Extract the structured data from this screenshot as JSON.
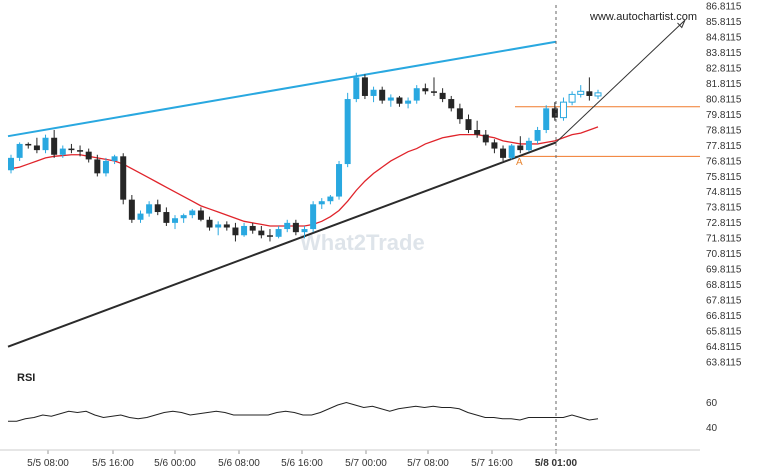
{
  "chart_data": {
    "type": "candlestick",
    "source_label": "www.autochartist.com",
    "watermark": "What2Trade",
    "indicator_label": "RSI",
    "pattern_point_label": "A",
    "y_ticks": [
      "86.8115",
      "85.8115",
      "84.8115",
      "83.8115",
      "82.8115",
      "81.8115",
      "80.8115",
      "79.8115",
      "78.8115",
      "77.8115",
      "76.8115",
      "75.8115",
      "74.8115",
      "73.8115",
      "72.8115",
      "71.8115",
      "70.8115",
      "69.8115",
      "68.8115",
      "67.8115",
      "66.8115",
      "65.8115",
      "64.8115",
      "63.8115"
    ],
    "rsi_ticks": [
      "60",
      "40"
    ],
    "x_ticks": [
      "5/5 08:00",
      "5/5 16:00",
      "5/6 00:00",
      "5/6 08:00",
      "5/6 16:00",
      "5/7 00:00",
      "5/7 08:00",
      "5/7 16:00",
      "5/8 01:00"
    ],
    "x_tick_bold_index": 8,
    "candles": [
      {
        "o": 76.2,
        "h": 77.2,
        "l": 76.0,
        "c": 77.0
      },
      {
        "o": 77.0,
        "h": 78.0,
        "l": 76.8,
        "c": 77.9
      },
      {
        "o": 77.9,
        "h": 78.0,
        "l": 77.6,
        "c": 77.8
      },
      {
        "o": 77.8,
        "h": 78.3,
        "l": 77.3,
        "c": 77.5
      },
      {
        "o": 77.5,
        "h": 78.5,
        "l": 77.3,
        "c": 78.3
      },
      {
        "o": 78.3,
        "h": 78.8,
        "l": 77.0,
        "c": 77.2
      },
      {
        "o": 77.2,
        "h": 77.8,
        "l": 77.0,
        "c": 77.6
      },
      {
        "o": 77.6,
        "h": 77.9,
        "l": 77.3,
        "c": 77.5
      },
      {
        "o": 77.5,
        "h": 77.8,
        "l": 77.1,
        "c": 77.4
      },
      {
        "o": 77.4,
        "h": 77.6,
        "l": 76.7,
        "c": 76.9
      },
      {
        "o": 76.9,
        "h": 77.2,
        "l": 75.8,
        "c": 76.0
      },
      {
        "o": 76.0,
        "h": 77.0,
        "l": 75.8,
        "c": 76.8
      },
      {
        "o": 76.8,
        "h": 77.2,
        "l": 76.6,
        "c": 77.1
      },
      {
        "o": 77.1,
        "h": 77.3,
        "l": 74.0,
        "c": 74.3
      },
      {
        "o": 74.3,
        "h": 74.6,
        "l": 72.8,
        "c": 73.0
      },
      {
        "o": 73.0,
        "h": 73.6,
        "l": 72.8,
        "c": 73.4
      },
      {
        "o": 73.4,
        "h": 74.2,
        "l": 73.2,
        "c": 74.0
      },
      {
        "o": 74.0,
        "h": 74.3,
        "l": 73.3,
        "c": 73.5
      },
      {
        "o": 73.5,
        "h": 73.8,
        "l": 72.6,
        "c": 72.8
      },
      {
        "o": 72.8,
        "h": 73.3,
        "l": 72.4,
        "c": 73.1
      },
      {
        "o": 73.1,
        "h": 73.4,
        "l": 72.8,
        "c": 73.3
      },
      {
        "o": 73.3,
        "h": 73.7,
        "l": 73.1,
        "c": 73.6
      },
      {
        "o": 73.6,
        "h": 73.8,
        "l": 72.9,
        "c": 73.0
      },
      {
        "o": 73.0,
        "h": 73.2,
        "l": 72.3,
        "c": 72.5
      },
      {
        "o": 72.5,
        "h": 72.9,
        "l": 72.0,
        "c": 72.7
      },
      {
        "o": 72.7,
        "h": 72.9,
        "l": 72.3,
        "c": 72.5
      },
      {
        "o": 72.5,
        "h": 72.8,
        "l": 71.6,
        "c": 72.0
      },
      {
        "o": 72.0,
        "h": 72.8,
        "l": 71.9,
        "c": 72.6
      },
      {
        "o": 72.6,
        "h": 72.8,
        "l": 72.1,
        "c": 72.3
      },
      {
        "o": 72.3,
        "h": 72.6,
        "l": 71.8,
        "c": 72.0
      },
      {
        "o": 72.0,
        "h": 72.4,
        "l": 71.6,
        "c": 71.9
      },
      {
        "o": 71.9,
        "h": 72.6,
        "l": 71.8,
        "c": 72.4
      },
      {
        "o": 72.4,
        "h": 73.0,
        "l": 72.2,
        "c": 72.8
      },
      {
        "o": 72.8,
        "h": 73.0,
        "l": 72.0,
        "c": 72.2
      },
      {
        "o": 72.2,
        "h": 72.6,
        "l": 71.8,
        "c": 72.4
      },
      {
        "o": 72.4,
        "h": 74.2,
        "l": 72.2,
        "c": 74.0
      },
      {
        "o": 74.0,
        "h": 74.4,
        "l": 73.7,
        "c": 74.2
      },
      {
        "o": 74.2,
        "h": 74.6,
        "l": 74.0,
        "c": 74.5
      },
      {
        "o": 74.5,
        "h": 76.8,
        "l": 74.3,
        "c": 76.6
      },
      {
        "o": 76.6,
        "h": 81.2,
        "l": 76.4,
        "c": 80.8
      },
      {
        "o": 80.8,
        "h": 82.5,
        "l": 80.6,
        "c": 82.2
      },
      {
        "o": 82.2,
        "h": 82.4,
        "l": 80.8,
        "c": 81.0
      },
      {
        "o": 81.0,
        "h": 81.6,
        "l": 80.6,
        "c": 81.4
      },
      {
        "o": 81.4,
        "h": 81.6,
        "l": 80.5,
        "c": 80.7
      },
      {
        "o": 80.7,
        "h": 81.1,
        "l": 80.3,
        "c": 80.9
      },
      {
        "o": 80.9,
        "h": 81.0,
        "l": 80.3,
        "c": 80.5
      },
      {
        "o": 80.5,
        "h": 80.9,
        "l": 80.2,
        "c": 80.7
      },
      {
        "o": 80.7,
        "h": 81.7,
        "l": 80.5,
        "c": 81.5
      },
      {
        "o": 81.5,
        "h": 81.8,
        "l": 81.1,
        "c": 81.3
      },
      {
        "o": 81.3,
        "h": 82.2,
        "l": 81.0,
        "c": 81.2
      },
      {
        "o": 81.2,
        "h": 81.5,
        "l": 80.6,
        "c": 80.8
      },
      {
        "o": 80.8,
        "h": 81.0,
        "l": 80.0,
        "c": 80.2
      },
      {
        "o": 80.2,
        "h": 80.5,
        "l": 79.2,
        "c": 79.5
      },
      {
        "o": 79.5,
        "h": 79.8,
        "l": 78.6,
        "c": 78.8
      },
      {
        "o": 78.8,
        "h": 79.4,
        "l": 78.3,
        "c": 78.5
      },
      {
        "o": 78.5,
        "h": 78.8,
        "l": 77.8,
        "c": 78.0
      },
      {
        "o": 78.0,
        "h": 78.2,
        "l": 77.3,
        "c": 77.6
      },
      {
        "o": 77.6,
        "h": 77.8,
        "l": 76.8,
        "c": 77.0
      },
      {
        "o": 77.0,
        "h": 77.9,
        "l": 76.9,
        "c": 77.8
      },
      {
        "o": 77.8,
        "h": 78.4,
        "l": 77.3,
        "c": 77.5
      },
      {
        "o": 77.5,
        "h": 78.3,
        "l": 77.4,
        "c": 78.1
      },
      {
        "o": 78.1,
        "h": 79.0,
        "l": 77.9,
        "c": 78.8
      },
      {
        "o": 78.8,
        "h": 80.4,
        "l": 78.6,
        "c": 80.2
      },
      {
        "o": 80.2,
        "h": 80.6,
        "l": 79.4,
        "c": 79.6
      },
      {
        "o": 79.6,
        "h": 80.9,
        "l": 79.4,
        "c": 80.6
      },
      {
        "o": 80.6,
        "h": 81.3,
        "l": 80.4,
        "c": 81.1
      },
      {
        "o": 81.1,
        "h": 81.7,
        "l": 80.9,
        "c": 81.3
      },
      {
        "o": 81.3,
        "h": 82.2,
        "l": 80.7,
        "c": 81.0
      },
      {
        "o": 81.0,
        "h": 81.4,
        "l": 80.8,
        "c": 81.2
      }
    ],
    "moving_average": [
      76.3,
      76.4,
      76.6,
      76.8,
      77.0,
      77.1,
      77.15,
      77.2,
      77.2,
      77.1,
      77.0,
      76.9,
      76.8,
      76.6,
      76.3,
      76.0,
      75.7,
      75.4,
      75.1,
      74.8,
      74.5,
      74.2,
      73.9,
      73.7,
      73.5,
      73.3,
      73.1,
      72.9,
      72.8,
      72.7,
      72.6,
      72.6,
      72.6,
      72.6,
      72.6,
      72.7,
      72.9,
      73.2,
      73.6,
      74.2,
      74.9,
      75.5,
      76.0,
      76.4,
      76.8,
      77.1,
      77.4,
      77.6,
      77.9,
      78.1,
      78.3,
      78.4,
      78.5,
      78.5,
      78.5,
      78.4,
      78.3,
      78.1,
      78.0,
      77.9,
      77.9,
      77.9,
      78.0,
      78.1,
      78.3,
      78.5,
      78.6,
      78.8,
      79.0
    ],
    "resistance_line": {
      "start": [
        0,
        78.4
      ],
      "end": [
        65,
        84.5
      ]
    },
    "support_line": {
      "start": [
        0,
        64.8
      ],
      "end": [
        65,
        78.0
      ]
    },
    "horizontal_levels": [
      80.3,
      77.1
    ],
    "forecast_arrow": {
      "start": [
        65,
        78.0
      ],
      "end": [
        80,
        85.9
      ]
    },
    "pattern_end_index": 65,
    "pattern_point_index": 60,
    "rsi": [
      45,
      45,
      47,
      48,
      50,
      49,
      51,
      53,
      52,
      53,
      50,
      48,
      49,
      50,
      48,
      47,
      48,
      50,
      52,
      53,
      52,
      50,
      51,
      52,
      53,
      52,
      50,
      50,
      50,
      50,
      50,
      52,
      53,
      52,
      50,
      50,
      52,
      55,
      58,
      60,
      58,
      56,
      57,
      55,
      53,
      55,
      56,
      57,
      56,
      57,
      56,
      56,
      55,
      52,
      50,
      48,
      48,
      47,
      47,
      46,
      48,
      48,
      48,
      48,
      48,
      50,
      48,
      46,
      47
    ],
    "rsi_range": [
      30,
      70
    ],
    "colors": {
      "bull": "#29a8e0",
      "bear": "#262626",
      "moving_average": "#e0242b",
      "resistance": "#29a8e0",
      "support": "#2b2b2b",
      "levels": "#f07a2c",
      "arrow": "#333333",
      "point_label": "#e8842f"
    }
  }
}
